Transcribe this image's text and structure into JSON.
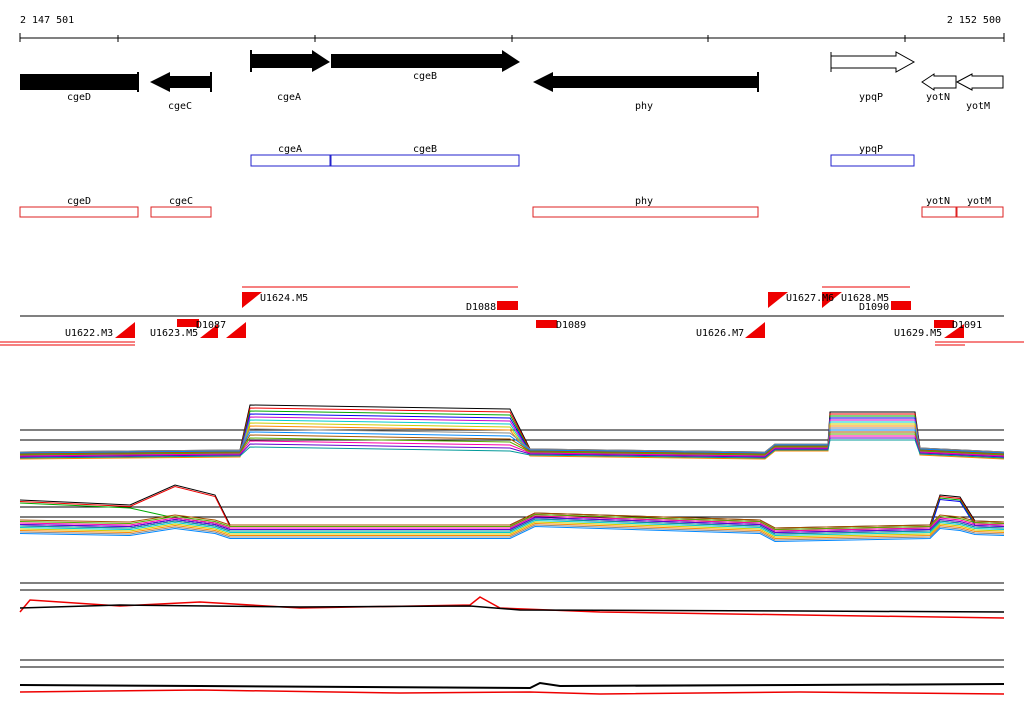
{
  "ruler": {
    "start": "2 147 501",
    "end": "2 152 500"
  },
  "genes": [
    "cgeD",
    "cgeC",
    "cgeA",
    "cgeB",
    "phy",
    "ypqP",
    "yotN",
    "yotM"
  ],
  "track_blue": [
    "cgeA",
    "cgeB",
    "ypqP"
  ],
  "track_red": [
    "cgeD",
    "cgeC",
    "phy",
    "yotN",
    "yotM"
  ],
  "features": [
    "U1622.M3",
    "U1623.M5",
    "D1087",
    "U1624.M5",
    "D1088",
    "D1089",
    "U1626.M7",
    "U1627.M6",
    "U1628.M5",
    "D1090",
    "U1629.M5",
    "D1091"
  ]
}
